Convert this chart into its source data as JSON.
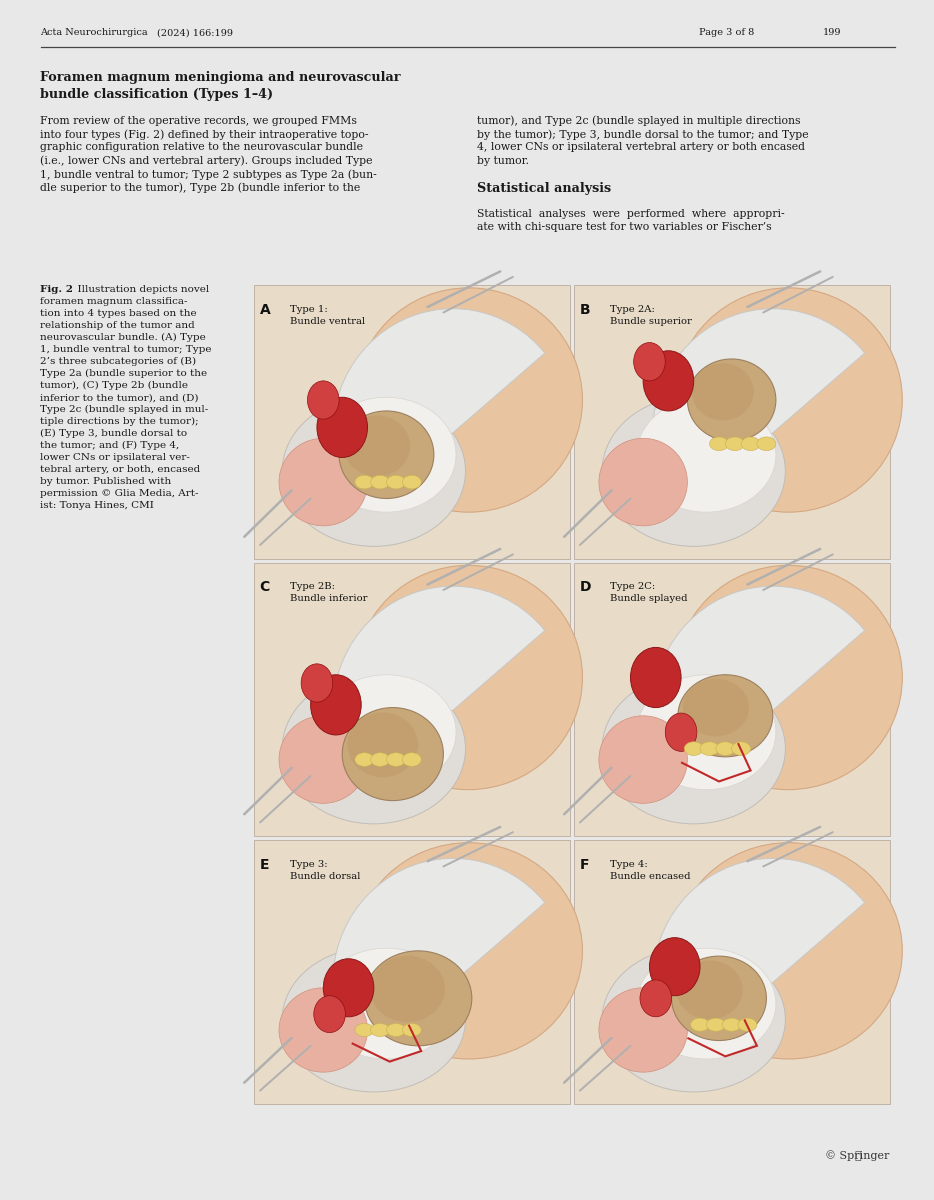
{
  "background_color": "#e8e8e8",
  "page_background": "#ffffff",
  "header_left": "Acta Neurochirurgica",
  "header_left2": "(2024) 166:199",
  "header_right": "Page 3 of 8",
  "header_right2": "199",
  "springer_text": "’ Springer",
  "text_color": "#1a1a1a",
  "panel_labels": [
    "A",
    "B",
    "C",
    "D",
    "E",
    "F"
  ],
  "panel_type_labels": [
    "Type 1:",
    "Type 2A:",
    "Type 2B:",
    "Type 2C:",
    "Type 3:",
    "Type 4:"
  ],
  "panel_type_desc": [
    "Bundle ventral",
    "Bundle superior",
    "Bundle inferior",
    "Bundle splayed",
    "Bundle dorsal",
    "Bundle encased"
  ],
  "skin_color": "#e8c4a0",
  "skin_dark": "#d4a882",
  "gray_white": "#d8d8d8",
  "dura_white": "#f0eeec",
  "tumor_tan": "#c8a878",
  "tumor_tan2": "#b89868",
  "red_vessel": "#c0282a",
  "red_dark": "#9c1818",
  "yellow_nerve": "#e8d070",
  "yellow_dark": "#c8b050",
  "pink_tissue": "#e8b0a0",
  "white_bone": "#f0f0ee",
  "gray_retractor": "#a0a0a0",
  "bg_tan": "#e8dcc8"
}
